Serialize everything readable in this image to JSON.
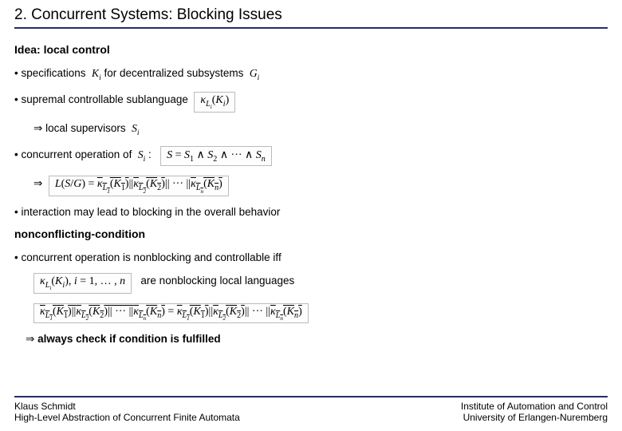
{
  "title": "2. Concurrent Systems: Blocking Issues",
  "subhead1": "Idea: local control",
  "b1a": "specifications",
  "b1b": "for decentralized subsystems",
  "b2": "supremal controllable sublanguage",
  "b2sub": "local supervisors",
  "b3": "concurrent operation of",
  "b4": "interaction may lead to blocking in the overall behavior",
  "subhead2": "nonconflicting-condition",
  "b5": "concurrent operation is nonblocking and controllable iff",
  "b5after": "are nonblocking local languages",
  "b6": "always check if condition is fulfilled",
  "footer": {
    "author": "Klaus Schmidt",
    "subtitle": "High-Level Abstraction of Concurrent Finite Automata",
    "org1": "Institute of Automation and Control",
    "org2": "University of Erlangen-Nuremberg"
  },
  "math": {
    "Ki": "K",
    "Ki_sub": "i",
    "Gi": "G",
    "Gi_sub": "i",
    "kappaLiKi": "κ",
    "Si": "S",
    "Si_sub": "i",
    "concurrent": "S = S₁ ∧ S₂ ∧ ··· ∧ Sₙ",
    "lsg_prefix": "L(S/G) = ",
    "range": ", i = 1, … , n"
  }
}
